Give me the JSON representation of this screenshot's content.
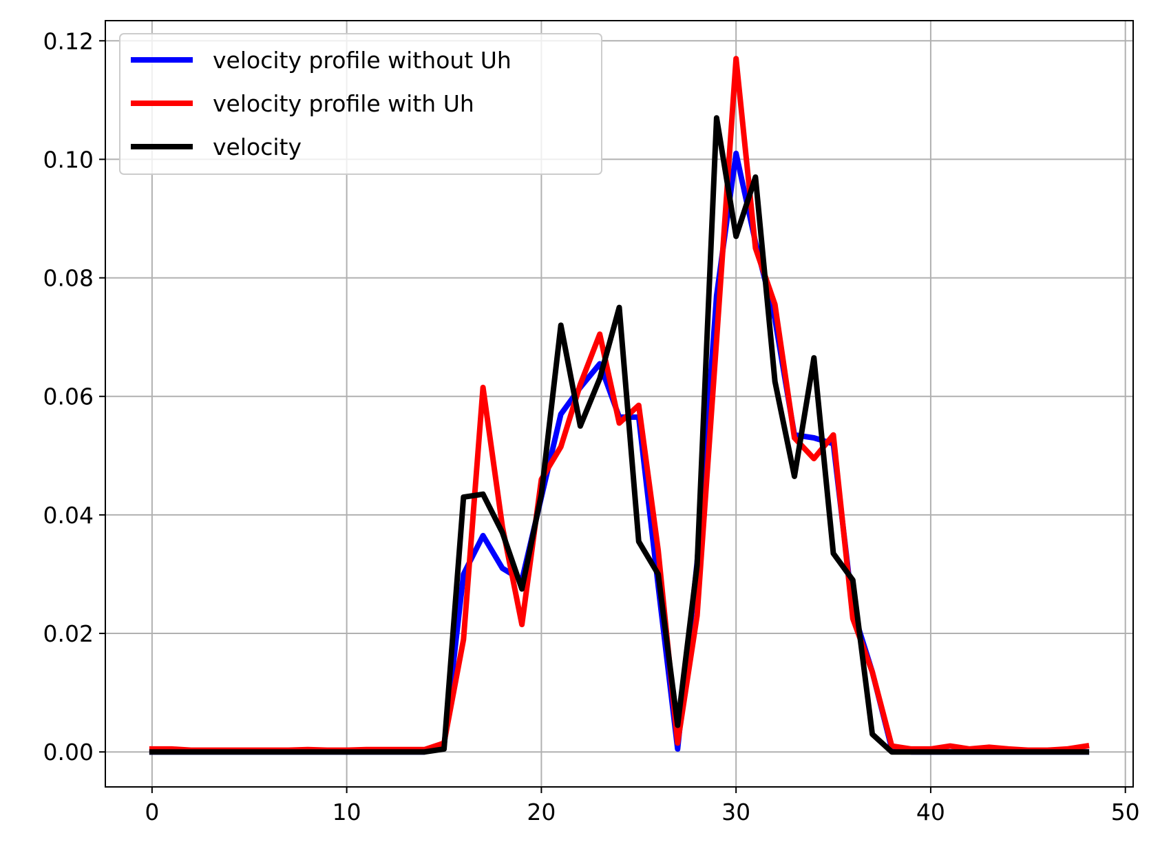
{
  "chart_data": {
    "type": "line",
    "title": "",
    "xlabel": "",
    "ylabel": "",
    "xlim": [
      -2.4,
      50.4
    ],
    "ylim": [
      -0.0059,
      0.1234
    ],
    "xticks": [
      0,
      10,
      20,
      30,
      40,
      50
    ],
    "xtick_labels": [
      "0",
      "10",
      "20",
      "30",
      "40",
      "50"
    ],
    "yticks": [
      0.0,
      0.02,
      0.04,
      0.06,
      0.08,
      0.1,
      0.12
    ],
    "ytick_labels": [
      "0.00",
      "0.02",
      "0.04",
      "0.06",
      "0.08",
      "0.10",
      "0.12"
    ],
    "grid": true,
    "legend_position": "top-left",
    "x": [
      0,
      1,
      2,
      3,
      4,
      5,
      6,
      7,
      8,
      9,
      10,
      11,
      12,
      13,
      14,
      15,
      16,
      17,
      18,
      19,
      20,
      21,
      22,
      23,
      24,
      25,
      26,
      27,
      28,
      29,
      30,
      31,
      32,
      33,
      34,
      35,
      36,
      37,
      38,
      39,
      40,
      41,
      42,
      43,
      44,
      45,
      46,
      47,
      48
    ],
    "series": [
      {
        "name": "velocity profile without Uh",
        "color": "#0000ff",
        "values": [
          0,
          0,
          0,
          0,
          0,
          0,
          0,
          0,
          0,
          0,
          0,
          0,
          0,
          0,
          0,
          0.001,
          0.03,
          0.0365,
          0.031,
          0.029,
          0.043,
          0.057,
          0.0615,
          0.0655,
          0.0565,
          0.0565,
          0.028,
          0.0005,
          0.032,
          0.077,
          0.101,
          0.086,
          0.073,
          0.0535,
          0.053,
          0.052,
          0.024,
          0.0135,
          0.0005,
          0,
          0,
          0,
          0,
          0,
          0,
          0,
          0,
          0,
          0
        ]
      },
      {
        "name": "velocity profile with Uh",
        "color": "#ff0000",
        "values": [
          0.0005,
          0.0005,
          0.0003,
          0.0003,
          0.0003,
          0.0003,
          0.0003,
          0.0003,
          0.0004,
          0.0003,
          0.0003,
          0.0004,
          0.0004,
          0.0004,
          0.0004,
          0.0015,
          0.019,
          0.0615,
          0.038,
          0.0215,
          0.046,
          0.0515,
          0.062,
          0.0705,
          0.0555,
          0.0585,
          0.034,
          0.0015,
          0.023,
          0.0695,
          0.117,
          0.085,
          0.0755,
          0.053,
          0.0495,
          0.0535,
          0.0225,
          0.0135,
          0.001,
          0.0005,
          0.0005,
          0.001,
          0.0005,
          0.0008,
          0.0005,
          0.0003,
          0.0003,
          0.0005,
          0.001
        ]
      },
      {
        "name": "velocity",
        "color": "#000000",
        "values": [
          0,
          0,
          0,
          0,
          0,
          0,
          0,
          0,
          0,
          0,
          0,
          0,
          0,
          0,
          0,
          0.0005,
          0.043,
          0.0435,
          0.037,
          0.0275,
          0.0435,
          0.072,
          0.055,
          0.063,
          0.075,
          0.0355,
          0.03,
          0.0045,
          0.0315,
          0.107,
          0.087,
          0.097,
          0.0625,
          0.0465,
          0.0665,
          0.0335,
          0.029,
          0.003,
          0,
          0,
          0,
          0,
          0,
          0,
          0,
          0,
          0,
          0,
          0
        ]
      }
    ]
  }
}
